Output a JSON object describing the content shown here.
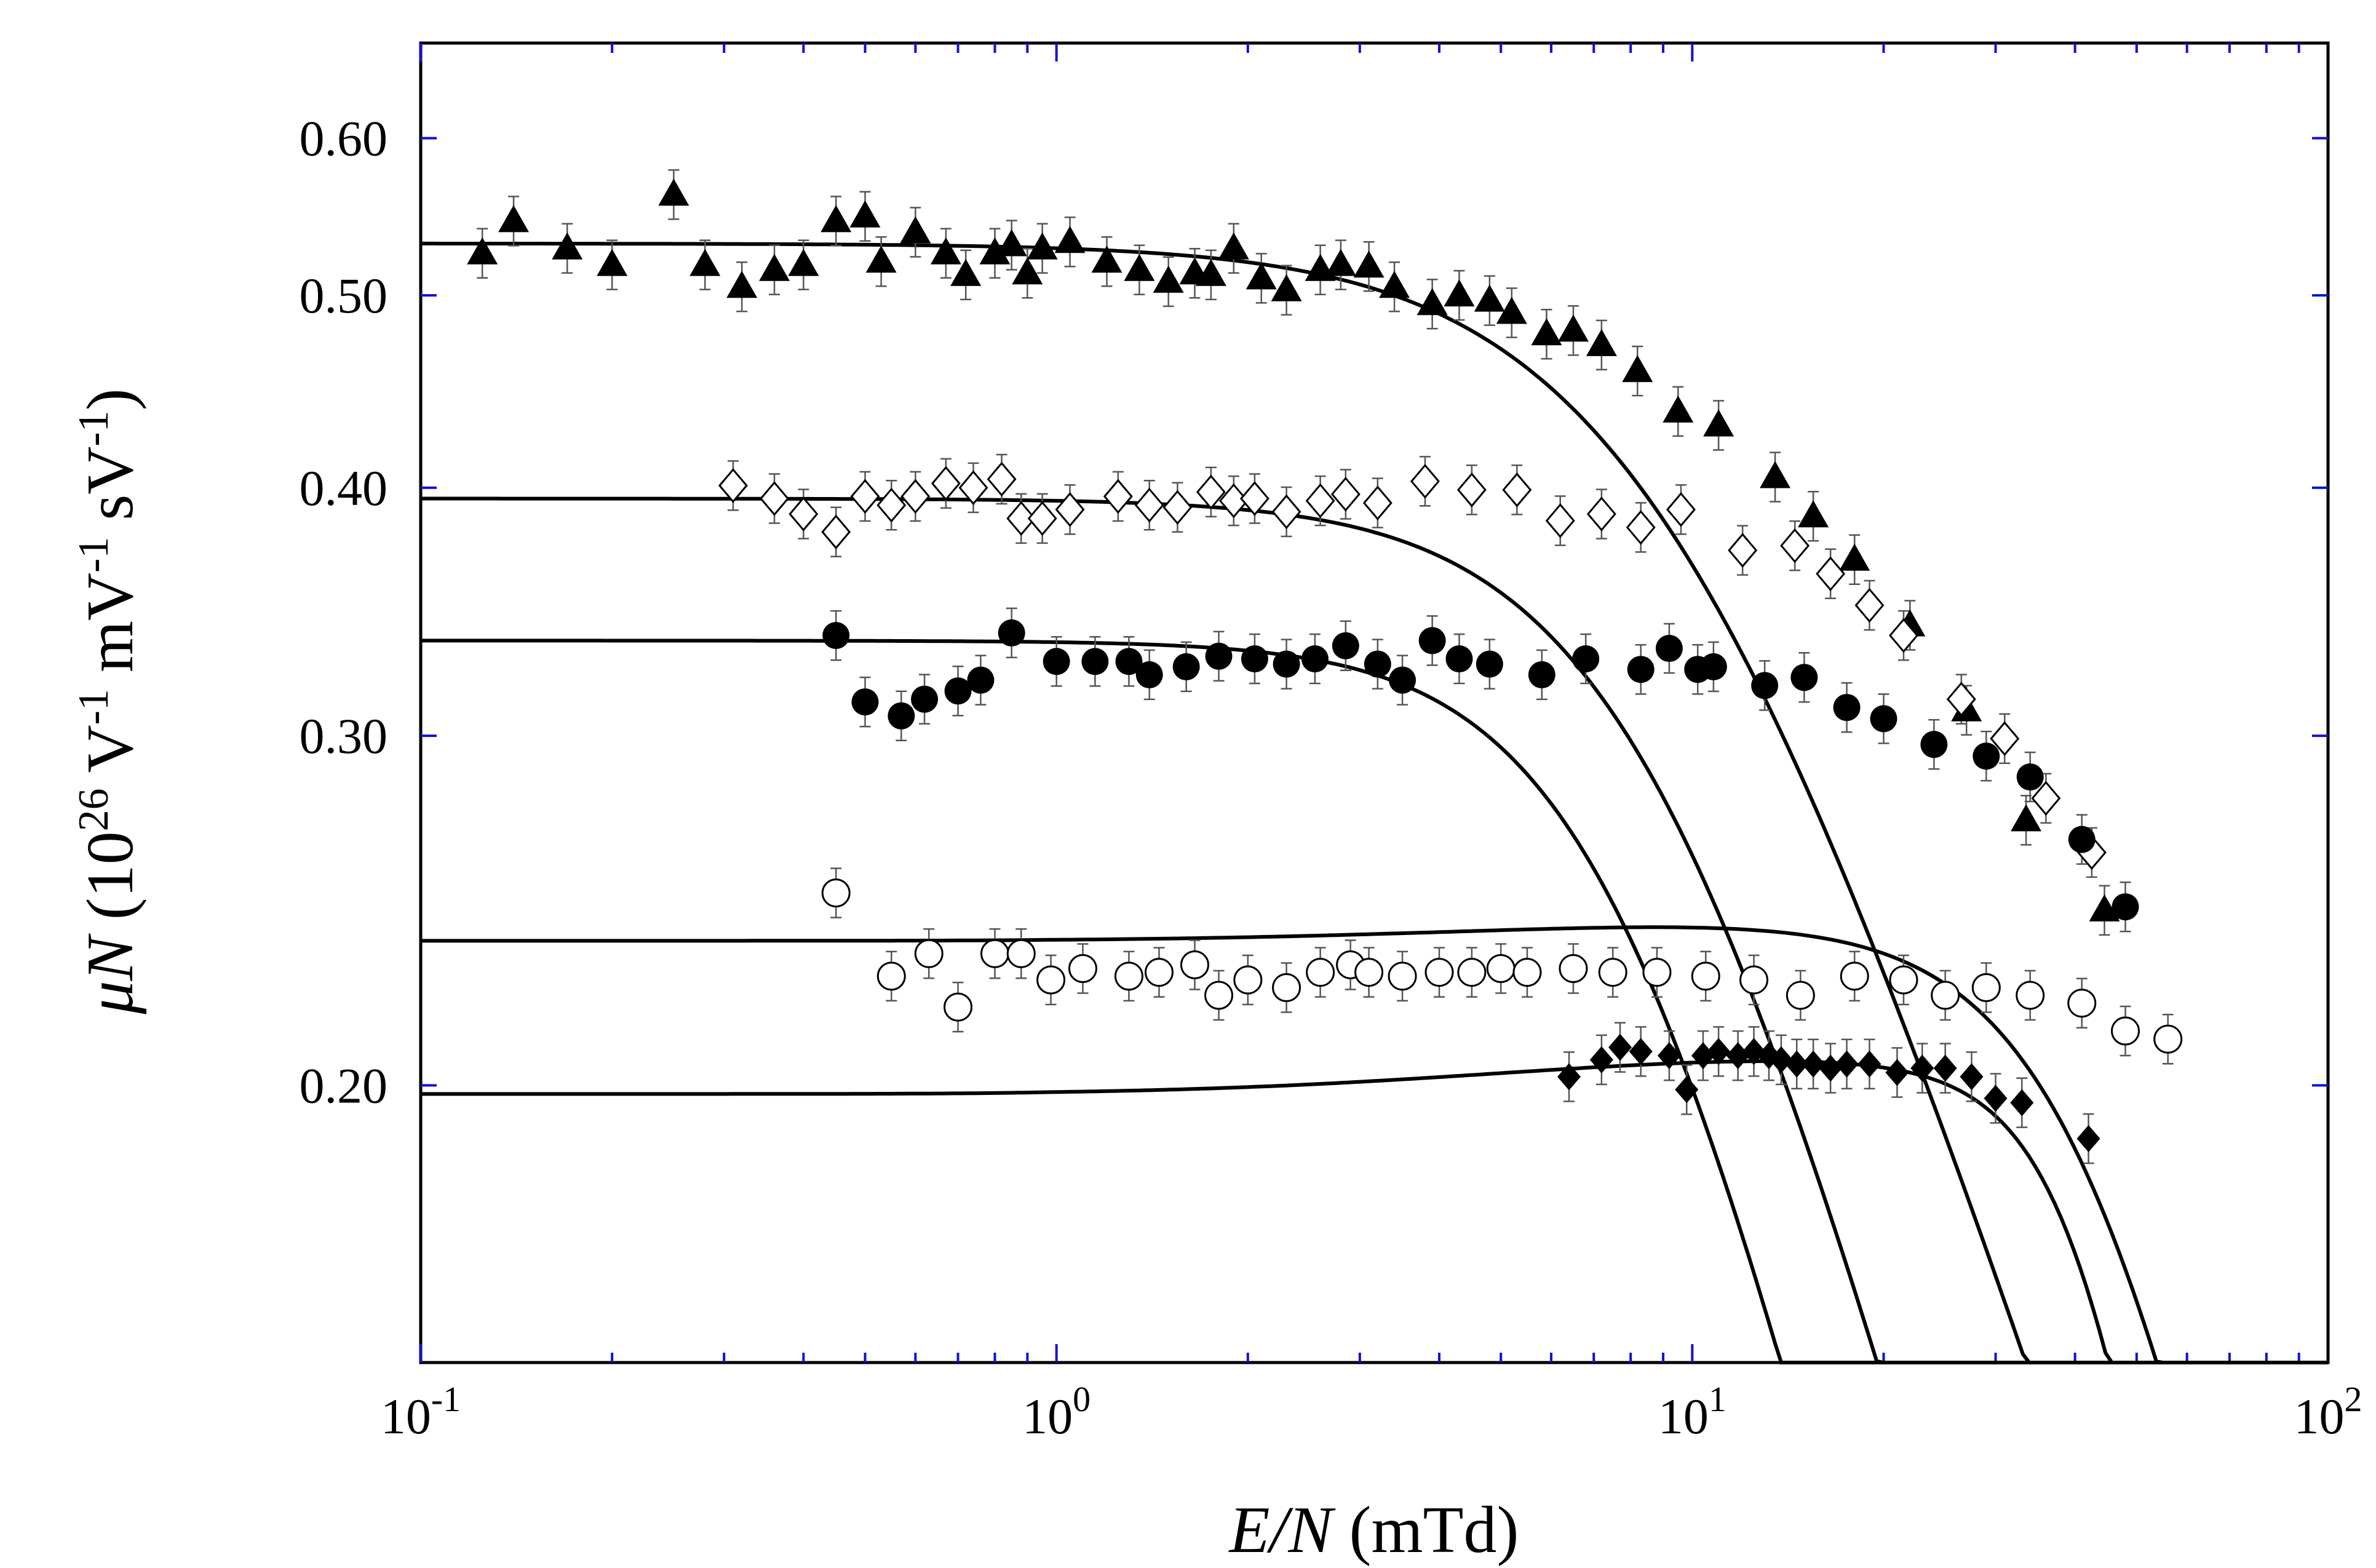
{
  "chart_data": {
    "type": "scatter",
    "title": "",
    "xlabel": "E/N (mTd)",
    "ylabel": "μN (10^26 V^-1 mV^-1 sV^-1)",
    "xscale": "log",
    "yscale": "log",
    "xlim": [
      0.1,
      100
    ],
    "ylim": [
      0.145,
      0.67
    ],
    "xticks": [
      {
        "value": 0.1,
        "base": "10",
        "exp": "-1"
      },
      {
        "value": 1,
        "base": "10",
        "exp": "0"
      },
      {
        "value": 10,
        "base": "10",
        "exp": "1"
      },
      {
        "value": 100,
        "base": "10",
        "exp": "2"
      }
    ],
    "yticks": [
      {
        "value": 0.2,
        "label": "0.20"
      },
      {
        "value": 0.3,
        "label": "0.30"
      },
      {
        "value": 0.4,
        "label": "0.40"
      },
      {
        "value": 0.5,
        "label": "0.50"
      },
      {
        "value": 0.6,
        "label": "0.60"
      }
    ],
    "axis_labels": {
      "x": {
        "italic": "E/N",
        "rest": " (mTd)"
      },
      "y": {
        "italic": "μN",
        "rest1": " (10",
        "sup1": "26",
        "rest2": " V",
        "sup2": "-1",
        "rest3": " mV",
        "sup3": "-1",
        "rest4": " sV",
        "sup4": "-1",
        "rest5": ")"
      }
    },
    "series": [
      {
        "name": "filled triangles",
        "marker": "triangle-filled",
        "fit_curve": {
          "low_field_value": 0.531,
          "knee_E_N": 9.5,
          "exponent": 1.0
        },
        "points": [
          [
            0.125,
            0.525
          ],
          [
            0.14,
            0.545
          ],
          [
            0.17,
            0.528
          ],
          [
            0.2,
            0.518
          ],
          [
            0.25,
            0.562
          ],
          [
            0.28,
            0.518
          ],
          [
            0.32,
            0.505
          ],
          [
            0.36,
            0.515
          ],
          [
            0.4,
            0.518
          ],
          [
            0.45,
            0.545
          ],
          [
            0.5,
            0.548
          ],
          [
            0.53,
            0.52
          ],
          [
            0.6,
            0.538
          ],
          [
            0.67,
            0.525
          ],
          [
            0.72,
            0.512
          ],
          [
            0.8,
            0.525
          ],
          [
            0.85,
            0.53
          ],
          [
            0.9,
            0.513
          ],
          [
            0.95,
            0.528
          ],
          [
            1.05,
            0.532
          ],
          [
            1.2,
            0.52
          ],
          [
            1.35,
            0.515
          ],
          [
            1.5,
            0.508
          ],
          [
            1.65,
            0.513
          ],
          [
            1.75,
            0.512
          ],
          [
            1.9,
            0.528
          ],
          [
            2.1,
            0.51
          ],
          [
            2.3,
            0.503
          ],
          [
            2.6,
            0.515
          ],
          [
            2.8,
            0.518
          ],
          [
            3.1,
            0.517
          ],
          [
            3.4,
            0.505
          ],
          [
            3.9,
            0.495
          ],
          [
            4.3,
            0.5
          ],
          [
            4.8,
            0.497
          ],
          [
            5.2,
            0.49
          ],
          [
            5.9,
            0.478
          ],
          [
            6.5,
            0.48
          ],
          [
            7.2,
            0.472
          ],
          [
            8.2,
            0.458
          ],
          [
            9.5,
            0.437
          ],
          [
            11,
            0.43
          ],
          [
            13.5,
            0.405
          ],
          [
            15.5,
            0.387
          ],
          [
            18,
            0.368
          ],
          [
            22,
            0.341
          ],
          [
            27,
            0.309
          ],
          [
            33.5,
            0.272
          ],
          [
            44.5,
            0.245
          ]
        ]
      },
      {
        "name": "open diamonds",
        "marker": "diamond-open",
        "fit_curve": {
          "low_field_value": 0.395,
          "knee_E_N": 9.0,
          "exponent": 1.2
        },
        "points": [
          [
            0.31,
            0.401
          ],
          [
            0.36,
            0.395
          ],
          [
            0.4,
            0.388
          ],
          [
            0.45,
            0.38
          ],
          [
            0.5,
            0.396
          ],
          [
            0.55,
            0.392
          ],
          [
            0.6,
            0.396
          ],
          [
            0.67,
            0.402
          ],
          [
            0.74,
            0.4
          ],
          [
            0.82,
            0.404
          ],
          [
            0.88,
            0.386
          ],
          [
            0.95,
            0.386
          ],
          [
            1.05,
            0.39
          ],
          [
            1.25,
            0.396
          ],
          [
            1.4,
            0.392
          ],
          [
            1.55,
            0.391
          ],
          [
            1.75,
            0.398
          ],
          [
            1.9,
            0.394
          ],
          [
            2.05,
            0.395
          ],
          [
            2.3,
            0.389
          ],
          [
            2.6,
            0.394
          ],
          [
            2.85,
            0.397
          ],
          [
            3.2,
            0.393
          ],
          [
            3.8,
            0.403
          ],
          [
            4.5,
            0.399
          ],
          [
            5.3,
            0.399
          ],
          [
            6.2,
            0.385
          ],
          [
            7.2,
            0.388
          ],
          [
            8.3,
            0.382
          ],
          [
            9.6,
            0.39
          ],
          [
            12,
            0.372
          ],
          [
            14.5,
            0.374
          ],
          [
            16.5,
            0.362
          ],
          [
            19,
            0.349
          ],
          [
            21.5,
            0.337
          ],
          [
            26.5,
            0.313
          ],
          [
            31,
            0.299
          ],
          [
            36,
            0.279
          ],
          [
            42.5,
            0.262
          ]
        ]
      },
      {
        "name": "filled circles",
        "marker": "circle-filled",
        "fit_curve": {
          "low_field_value": 0.335,
          "knee_E_N": 8.0,
          "exponent": 1.35
        },
        "points": [
          [
            0.45,
            0.337
          ],
          [
            0.5,
            0.312
          ],
          [
            0.57,
            0.307
          ],
          [
            0.62,
            0.313
          ],
          [
            0.7,
            0.316
          ],
          [
            0.76,
            0.32
          ],
          [
            0.85,
            0.338
          ],
          [
            1.0,
            0.327
          ],
          [
            1.15,
            0.327
          ],
          [
            1.3,
            0.327
          ],
          [
            1.4,
            0.322
          ],
          [
            1.6,
            0.325
          ],
          [
            1.8,
            0.329
          ],
          [
            2.05,
            0.328
          ],
          [
            2.3,
            0.326
          ],
          [
            2.55,
            0.328
          ],
          [
            2.85,
            0.333
          ],
          [
            3.2,
            0.326
          ],
          [
            3.5,
            0.32
          ],
          [
            3.9,
            0.335
          ],
          [
            4.3,
            0.328
          ],
          [
            4.8,
            0.326
          ],
          [
            5.8,
            0.322
          ],
          [
            6.8,
            0.328
          ],
          [
            8.3,
            0.324
          ],
          [
            9.2,
            0.332
          ],
          [
            10.2,
            0.324
          ],
          [
            10.8,
            0.325
          ],
          [
            13,
            0.318
          ],
          [
            15,
            0.321
          ],
          [
            17.5,
            0.31
          ],
          [
            20,
            0.306
          ],
          [
            24,
            0.297
          ],
          [
            29,
            0.293
          ],
          [
            34,
            0.286
          ],
          [
            41,
            0.266
          ],
          [
            48,
            0.246
          ]
        ]
      },
      {
        "name": "open circles",
        "marker": "circle-open",
        "fit_curve": {
          "low_field_value": 0.2365,
          "knee_E_N": 45,
          "exponent": 1.6,
          "bump": 0.005
        },
        "points": [
          [
            0.45,
            0.25
          ],
          [
            0.55,
            0.227
          ],
          [
            0.63,
            0.233
          ],
          [
            0.7,
            0.219
          ],
          [
            0.8,
            0.233
          ],
          [
            0.88,
            0.233
          ],
          [
            0.98,
            0.226
          ],
          [
            1.1,
            0.229
          ],
          [
            1.3,
            0.227
          ],
          [
            1.45,
            0.228
          ],
          [
            1.65,
            0.23
          ],
          [
            1.8,
            0.222
          ],
          [
            2.0,
            0.226
          ],
          [
            2.3,
            0.224
          ],
          [
            2.6,
            0.228
          ],
          [
            2.9,
            0.23
          ],
          [
            3.1,
            0.228
          ],
          [
            3.5,
            0.227
          ],
          [
            4.0,
            0.228
          ],
          [
            4.5,
            0.228
          ],
          [
            5.0,
            0.229
          ],
          [
            5.5,
            0.228
          ],
          [
            6.5,
            0.229
          ],
          [
            7.5,
            0.228
          ],
          [
            8.8,
            0.228
          ],
          [
            10.5,
            0.227
          ],
          [
            12.5,
            0.226
          ],
          [
            14.8,
            0.222
          ],
          [
            18,
            0.227
          ],
          [
            21.5,
            0.226
          ],
          [
            25,
            0.222
          ],
          [
            29,
            0.224
          ],
          [
            34,
            0.222
          ],
          [
            41,
            0.22
          ],
          [
            48,
            0.213
          ],
          [
            56,
            0.211
          ]
        ]
      },
      {
        "name": "filled diamonds",
        "marker": "diamond-filled",
        "fit_curve": {
          "low_field_value": 0.198,
          "knee_E_N": 45,
          "exponent": 2.5,
          "bump": 0.008
        },
        "points": [
          [
            6.4,
            0.202
          ],
          [
            7.2,
            0.206
          ],
          [
            7.7,
            0.209
          ],
          [
            8.3,
            0.208
          ],
          [
            9.2,
            0.207
          ],
          [
            9.8,
            0.199
          ],
          [
            10.4,
            0.207
          ],
          [
            11,
            0.208
          ],
          [
            11.8,
            0.207
          ],
          [
            12.5,
            0.208
          ],
          [
            13.2,
            0.207
          ],
          [
            13.8,
            0.206
          ],
          [
            14.6,
            0.205
          ],
          [
            15.5,
            0.205
          ],
          [
            16.5,
            0.204
          ],
          [
            17.5,
            0.205
          ],
          [
            19,
            0.205
          ],
          [
            21,
            0.203
          ],
          [
            23,
            0.204
          ],
          [
            25,
            0.204
          ],
          [
            27.5,
            0.202
          ],
          [
            30,
            0.197
          ],
          [
            33,
            0.196
          ],
          [
            42,
            0.188
          ]
        ]
      }
    ]
  }
}
